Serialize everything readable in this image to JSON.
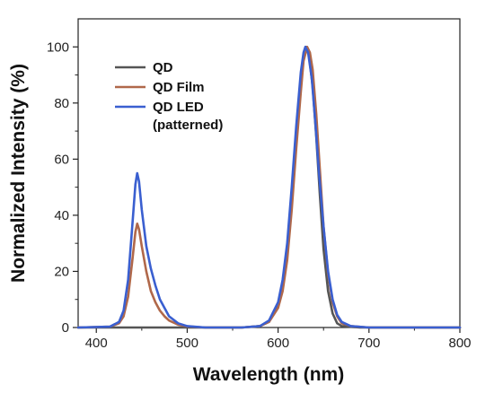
{
  "chart_data": {
    "type": "line",
    "xlabel": "Wavelength (nm)",
    "ylabel": "Normalized Intensity (%)",
    "xlim": [
      380,
      800
    ],
    "ylim": [
      0,
      110
    ],
    "x_ticks": [
      400,
      500,
      600,
      700,
      800
    ],
    "y_ticks": [
      0,
      20,
      40,
      60,
      80,
      100
    ],
    "grid": false,
    "legend_position": "top-left",
    "series": [
      {
        "name": "QD",
        "color": "#555555",
        "points": [
          [
            380,
            0
          ],
          [
            560,
            0
          ],
          [
            580,
            0.5
          ],
          [
            590,
            2
          ],
          [
            600,
            8
          ],
          [
            605,
            15
          ],
          [
            610,
            26
          ],
          [
            615,
            45
          ],
          [
            620,
            68
          ],
          [
            625,
            88
          ],
          [
            628,
            97
          ],
          [
            631,
            100
          ],
          [
            634,
            97
          ],
          [
            638,
            86
          ],
          [
            642,
            68
          ],
          [
            646,
            47
          ],
          [
            650,
            28
          ],
          [
            655,
            13
          ],
          [
            660,
            5
          ],
          [
            665,
            1.5
          ],
          [
            670,
            0.5
          ],
          [
            690,
            0
          ],
          [
            800,
            0
          ]
        ]
      },
      {
        "name": "QD Film",
        "color": "#b0684a",
        "points": [
          [
            380,
            0
          ],
          [
            415,
            0.3
          ],
          [
            425,
            1.5
          ],
          [
            430,
            4
          ],
          [
            435,
            11
          ],
          [
            440,
            25
          ],
          [
            443,
            34
          ],
          [
            445,
            37
          ],
          [
            447,
            35
          ],
          [
            450,
            29
          ],
          [
            455,
            20
          ],
          [
            460,
            13
          ],
          [
            465,
            9
          ],
          [
            470,
            6
          ],
          [
            475,
            4
          ],
          [
            480,
            2.5
          ],
          [
            490,
            1
          ],
          [
            500,
            0.4
          ],
          [
            520,
            0
          ],
          [
            560,
            0
          ],
          [
            580,
            0.5
          ],
          [
            590,
            2
          ],
          [
            600,
            7
          ],
          [
            605,
            13
          ],
          [
            610,
            24
          ],
          [
            615,
            42
          ],
          [
            620,
            64
          ],
          [
            625,
            84
          ],
          [
            628,
            95
          ],
          [
            632,
            100
          ],
          [
            635,
            98
          ],
          [
            638,
            92
          ],
          [
            642,
            76
          ],
          [
            646,
            56
          ],
          [
            650,
            36
          ],
          [
            655,
            19
          ],
          [
            660,
            9
          ],
          [
            665,
            4
          ],
          [
            670,
            1.5
          ],
          [
            680,
            0.5
          ],
          [
            700,
            0
          ],
          [
            800,
            0
          ]
        ]
      },
      {
        "name": "QD LED\n(patterned)",
        "color": "#3a5fd0",
        "points": [
          [
            380,
            0
          ],
          [
            415,
            0.3
          ],
          [
            425,
            2
          ],
          [
            430,
            6
          ],
          [
            435,
            17
          ],
          [
            440,
            38
          ],
          [
            443,
            51
          ],
          [
            445,
            55
          ],
          [
            447,
            52
          ],
          [
            450,
            42
          ],
          [
            455,
            29
          ],
          [
            460,
            21
          ],
          [
            465,
            15
          ],
          [
            470,
            10
          ],
          [
            475,
            7
          ],
          [
            480,
            4
          ],
          [
            490,
            1.5
          ],
          [
            500,
            0.5
          ],
          [
            520,
            0
          ],
          [
            560,
            0
          ],
          [
            580,
            0.5
          ],
          [
            590,
            2.5
          ],
          [
            600,
            9
          ],
          [
            605,
            17
          ],
          [
            610,
            30
          ],
          [
            615,
            50
          ],
          [
            620,
            72
          ],
          [
            625,
            91
          ],
          [
            628,
            98
          ],
          [
            630,
            100
          ],
          [
            633,
            98
          ],
          [
            637,
            89
          ],
          [
            641,
            73
          ],
          [
            645,
            55
          ],
          [
            650,
            36
          ],
          [
            655,
            20
          ],
          [
            660,
            10
          ],
          [
            665,
            4.5
          ],
          [
            670,
            2
          ],
          [
            680,
            0.5
          ],
          [
            700,
            0
          ],
          [
            800,
            0
          ]
        ]
      }
    ]
  }
}
